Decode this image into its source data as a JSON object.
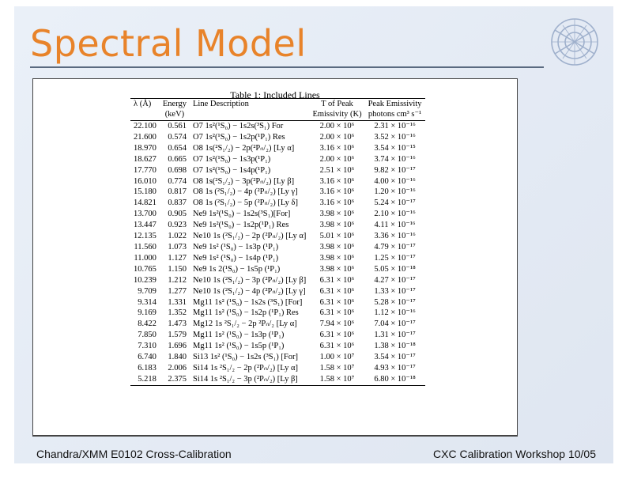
{
  "slide": {
    "title": "Spectral Model",
    "footer_left": "Chandra/XMM E0102 Cross-Calibration",
    "footer_right": "CXC Calibration Workshop 10/05"
  },
  "table": {
    "caption": "Table 1: Included Lines",
    "headers": {
      "wavelength_1": "λ (Å)",
      "energy_1": "Energy",
      "energy_2": "(keV)",
      "desc_1": "Line Description",
      "temp_1": "T of Peak",
      "temp_2": "Emissivity (K)",
      "emis_1": "Peak Emissivity",
      "emis_2": "photons cm³ s⁻¹"
    },
    "rows": [
      {
        "wavelength": "22.100",
        "energy": "0.561",
        "description": "O7 1s²(¹S₀) − 1s2s(³S₁) For",
        "temperature": "2.00 × 10⁶",
        "emissivity": "2.31 × 10⁻¹⁶"
      },
      {
        "wavelength": "21.600",
        "energy": "0.574",
        "description": "O7 1s²(¹S₀) − 1s2p(¹P₁) Res",
        "temperature": "2.00 × 10⁶",
        "emissivity": "3.52 × 10⁻¹⁶"
      },
      {
        "wavelength": "18.970",
        "energy": "0.654",
        "description": "O8 1s(²S₁/₂) − 2p(²Pₙ/₂) [Ly α]",
        "temperature": "3.16 × 10⁶",
        "emissivity": "3.54 × 10⁻¹⁵"
      },
      {
        "wavelength": "18.627",
        "energy": "0.665",
        "description": "O7 1s²(¹S₀) − 1s3p(¹P₁)",
        "temperature": "2.00 × 10⁶",
        "emissivity": "3.74 × 10⁻¹⁶"
      },
      {
        "wavelength": "17.770",
        "energy": "0.698",
        "description": "O7 1s²(¹S₀) − 1s4p(¹P₁)",
        "temperature": "2.51 × 10⁶",
        "emissivity": "9.82 × 10⁻¹⁷"
      },
      {
        "wavelength": "16.010",
        "energy": "0.774",
        "description": "O8 1s(²S₁/₂) − 3p(²Pₙ/₂) [Ly β]",
        "temperature": "3.16 × 10⁶",
        "emissivity": "4.00 × 10⁻¹⁶"
      },
      {
        "wavelength": "15.180",
        "energy": "0.817",
        "description": "O8 1s (²S₁/₂) − 4p (²Pₙ/₂) [Ly γ]",
        "temperature": "3.16 × 10⁶",
        "emissivity": "1.20 × 10⁻¹⁶"
      },
      {
        "wavelength": "14.821",
        "energy": "0.837",
        "description": "O8 1s (²S₁/₂) − 5p (²Pₙ/₂) [Ly δ]",
        "temperature": "3.16 × 10⁶",
        "emissivity": "5.24 × 10⁻¹⁷"
      },
      {
        "wavelength": "13.700",
        "energy": "0.905",
        "description": "Ne9 1s²(¹S₀) − 1s2s(³S₁)[For]",
        "temperature": "3.98 × 10⁶",
        "emissivity": "2.10 × 10⁻¹⁶"
      },
      {
        "wavelength": "13.447",
        "energy": "0.923",
        "description": "Ne9 1s²(¹S₀) − 1s2p(¹P₁) Res",
        "temperature": "3.98 × 10⁶",
        "emissivity": "4.11 × 10⁻¹⁶"
      },
      {
        "wavelength": "12.135",
        "energy": "1.022",
        "description": "Ne10 1s (²S₁/₂) − 2p (²Pₙ/₂) [Ly α]",
        "temperature": "5.01 × 10⁶",
        "emissivity": "3.36 × 10⁻¹⁶"
      },
      {
        "wavelength": "11.560",
        "energy": "1.073",
        "description": "Ne9 1s² (¹S₀) − 1s3p (¹P₁)",
        "temperature": "3.98 × 10⁶",
        "emissivity": "4.79 × 10⁻¹⁷"
      },
      {
        "wavelength": "11.000",
        "energy": "1.127",
        "description": "Ne9 1s² (¹S₀) − 1s4p (¹P₁)",
        "temperature": "3.98 × 10⁶",
        "emissivity": "1.25 × 10⁻¹⁷"
      },
      {
        "wavelength": "10.765",
        "energy": "1.150",
        "description": "Ne9 1s 2(¹S₀) − 1s5p (¹P₁)",
        "temperature": "3.98 × 10⁶",
        "emissivity": "5.05 × 10⁻¹⁸"
      },
      {
        "wavelength": "10.239",
        "energy": "1.212",
        "description": "Ne10 1s (²S₁/₂) − 3p (²Pₙ/₂) [Ly β]",
        "temperature": "6.31 × 10⁶",
        "emissivity": "4.27 × 10⁻¹⁷"
      },
      {
        "wavelength": "9.709",
        "energy": "1.277",
        "description": "Ne10 1s (²S₁/₂) − 4p (²Pₙ/₂) [Ly γ]",
        "temperature": "6.31 × 10⁶",
        "emissivity": "1.33 × 10⁻¹⁷"
      },
      {
        "wavelength": "9.314",
        "energy": "1.331",
        "description": "Mg11 1s² (¹S₀) − 1s2s (³S₁) [For]",
        "temperature": "6.31 × 10⁶",
        "emissivity": "5.28 × 10⁻¹⁷"
      },
      {
        "wavelength": "9.169",
        "energy": "1.352",
        "description": "Mg11 1s² (¹S₀) − 1s2p (¹P₁) Res",
        "temperature": "6.31 × 10⁶",
        "emissivity": "1.12 × 10⁻¹⁶"
      },
      {
        "wavelength": "8.422",
        "energy": "1.473",
        "description": "Mg12 1s ²S₁/₂ − 2p ²Pₙ/₂ [Ly α]",
        "temperature": "7.94 × 10⁶",
        "emissivity": "7.04 × 10⁻¹⁷"
      },
      {
        "wavelength": "7.850",
        "energy": "1.579",
        "description": "Mg11 1s² (¹S₀) − 1s3p (¹P₁)",
        "temperature": "6.31 × 10⁶",
        "emissivity": "1.31 × 10⁻¹⁷"
      },
      {
        "wavelength": "7.310",
        "energy": "1.696",
        "description": "Mg11 1s² (¹S₀) − 1s5p (¹P₁)",
        "temperature": "6.31 × 10⁶",
        "emissivity": "1.38 × 10⁻¹⁸"
      },
      {
        "wavelength": "6.740",
        "energy": "1.840",
        "description": "Si13 1s² (¹S₀) − 1s2s (³S₁) [For]",
        "temperature": "1.00 × 10⁷",
        "emissivity": "3.54 × 10⁻¹⁷"
      },
      {
        "wavelength": "6.183",
        "energy": "2.006",
        "description": "Si14 1s ²S₁/₂ − 2p (²Pₙ/₂) [Ly α]",
        "temperature": "1.58 × 10⁷",
        "emissivity": "4.93 × 10⁻¹⁷"
      },
      {
        "wavelength": "5.218",
        "energy": "2.375",
        "description": "Si14 1s ²S₁/₂ − 3p (²Pₙ/₂) [Ly β]",
        "temperature": "1.58 × 10⁷",
        "emissivity": "6.80 × 10⁻¹⁸"
      }
    ]
  },
  "colors": {
    "title": "#e8832a",
    "background": "#e4eaf4",
    "logo": "#9fb0cc"
  },
  "icons": {
    "logo": "chandra-logo-icon"
  }
}
